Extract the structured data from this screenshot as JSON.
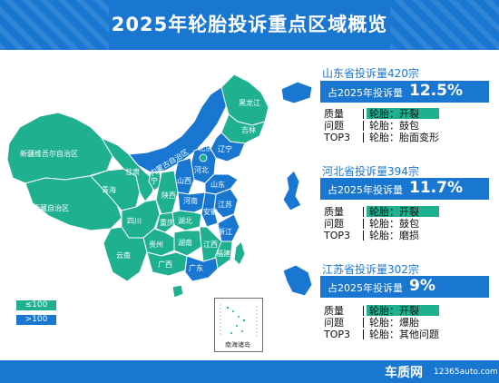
{
  "title": "2025年轮胎投诉重点区域概览",
  "colors": {
    "primary": "#1977d1",
    "teal": "#1fb090",
    "green": "#1fad8e"
  },
  "legend": [
    {
      "label": "≤100",
      "color": "#1fb090"
    },
    {
      "label": ">100",
      "color": "#1977d1"
    }
  ],
  "provinces": {
    "xinjiang": "新疆维吾尔自治区",
    "xizang": "西藏自治区",
    "qinghai": "青海",
    "gansu": "甘肃",
    "neimenggu": "内蒙古自治区",
    "heilongjiang": "黑龙江",
    "jilin": "吉林",
    "liaoning": "辽宁",
    "beijing": "北京",
    "hebei": "河北",
    "shanxi": "山西",
    "shandong": "山东",
    "henan": "河南",
    "shaanxi": "陕西",
    "ningxia": "宁",
    "sichuan": "四川",
    "chongqing": "重庆",
    "hubei": "湖北",
    "hunan": "湖南",
    "jiangsu": "江苏",
    "anhui": "安徽",
    "zhejiang": "浙江",
    "jiangxi": "江西",
    "fujian": "福建",
    "guizhou": "贵州",
    "yunnan": "云南",
    "guangxi": "广西",
    "guangdong": "广东"
  },
  "inset_label": "南海诸岛",
  "regions": [
    {
      "title": "山东省投诉量420宗",
      "share_label": "占2025年投诉量",
      "share_value": "12.5%",
      "rows": [
        {
          "key": "质量",
          "value": "轮胎：开裂",
          "highlight": true
        },
        {
          "key": "问题",
          "value": "轮胎：鼓包",
          "highlight": false
        },
        {
          "key": "TOP3",
          "value": "轮胎：胎面变形",
          "highlight": false
        }
      ]
    },
    {
      "title": "河北省投诉量394宗",
      "share_label": "占2025年投诉量",
      "share_value": "11.7%",
      "rows": [
        {
          "key": "质量",
          "value": "轮胎：开裂",
          "highlight": true
        },
        {
          "key": "问题",
          "value": "轮胎：鼓包",
          "highlight": false
        },
        {
          "key": "TOP3",
          "value": "轮胎：磨损",
          "highlight": false
        }
      ]
    },
    {
      "title": "江苏省投诉量302宗",
      "share_label": "占2025年投诉量",
      "share_value": "9%",
      "rows": [
        {
          "key": "质量",
          "value": "轮胎：开裂",
          "highlight": true
        },
        {
          "key": "问题",
          "value": "轮胎：爆胎",
          "highlight": false
        },
        {
          "key": "TOP3",
          "value": "轮胎：其他问题",
          "highlight": false
        }
      ]
    }
  ],
  "footer": {
    "logo": "车质网",
    "url": "12365auto.com"
  }
}
